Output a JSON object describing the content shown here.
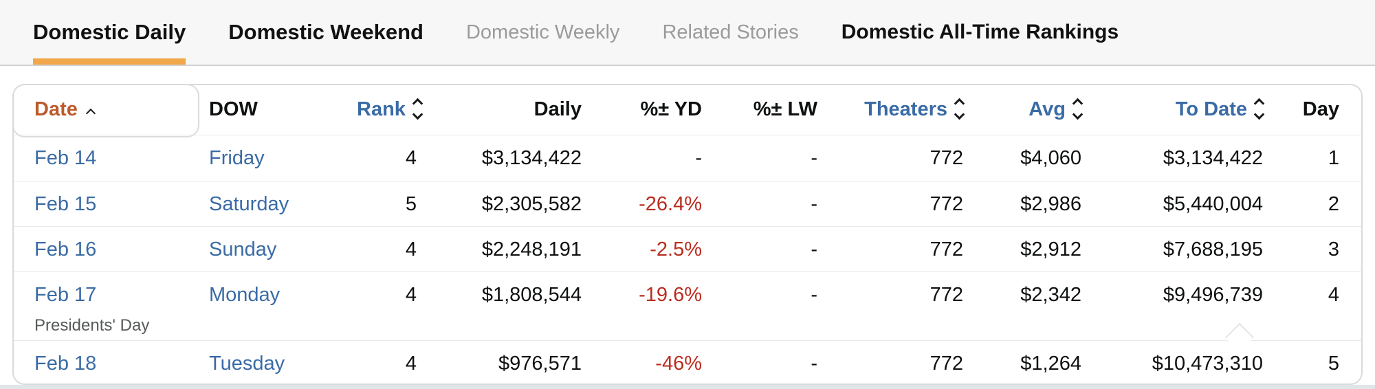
{
  "tabs": {
    "items": [
      {
        "label": "Domestic Daily"
      },
      {
        "label": "Domestic Weekend"
      },
      {
        "label": "Domestic Weekly"
      },
      {
        "label": "Related Stories"
      },
      {
        "label": "Domestic All-Time Rankings"
      }
    ]
  },
  "table": {
    "columns": [
      {
        "label": "Date",
        "sort": "ascending-active"
      },
      {
        "label": "DOW",
        "sort": "none"
      },
      {
        "label": "Rank",
        "sort": "sortable"
      },
      {
        "label": "Daily",
        "sort": "none"
      },
      {
        "label": "%± YD",
        "sort": "none"
      },
      {
        "label": "%± LW",
        "sort": "none"
      },
      {
        "label": "Theaters",
        "sort": "sortable"
      },
      {
        "label": "Avg",
        "sort": "sortable"
      },
      {
        "label": "To Date",
        "sort": "sortable"
      },
      {
        "label": "Day",
        "sort": "none"
      }
    ],
    "rows": [
      {
        "date": "Feb 14",
        "note": "",
        "dow": "Friday",
        "rank": "4",
        "daily": "$3,134,422",
        "pct_yd": "-",
        "pct_lw": "-",
        "theaters": "772",
        "avg": "$4,060",
        "to_date": "$3,134,422",
        "day": "1"
      },
      {
        "date": "Feb 15",
        "note": "",
        "dow": "Saturday",
        "rank": "5",
        "daily": "$2,305,582",
        "pct_yd": "-26.4%",
        "pct_lw": "-",
        "theaters": "772",
        "avg": "$2,986",
        "to_date": "$5,440,004",
        "day": "2"
      },
      {
        "date": "Feb 16",
        "note": "",
        "dow": "Sunday",
        "rank": "4",
        "daily": "$2,248,191",
        "pct_yd": "-2.5%",
        "pct_lw": "-",
        "theaters": "772",
        "avg": "$2,912",
        "to_date": "$7,688,195",
        "day": "3"
      },
      {
        "date": "Feb 17",
        "note": "Presidents' Day",
        "dow": "Monday",
        "rank": "4",
        "daily": "$1,808,544",
        "pct_yd": "-19.6%",
        "pct_lw": "-",
        "theaters": "772",
        "avg": "$2,342",
        "to_date": "$9,496,739",
        "day": "4"
      },
      {
        "date": "Feb 18",
        "note": "",
        "dow": "Tuesday",
        "rank": "4",
        "daily": "$976,571",
        "pct_yd": "-46%",
        "pct_lw": "-",
        "theaters": "772",
        "avg": "$1,264",
        "to_date": "$10,473,310",
        "day": "5"
      }
    ]
  },
  "colors": {
    "tab_underline": "#f0a84b",
    "active_sort_header": "#bc5a2b",
    "sortable_header": "#3a6ba5",
    "link": "#3a6ba5",
    "negative_pct": "#ba2c20"
  }
}
